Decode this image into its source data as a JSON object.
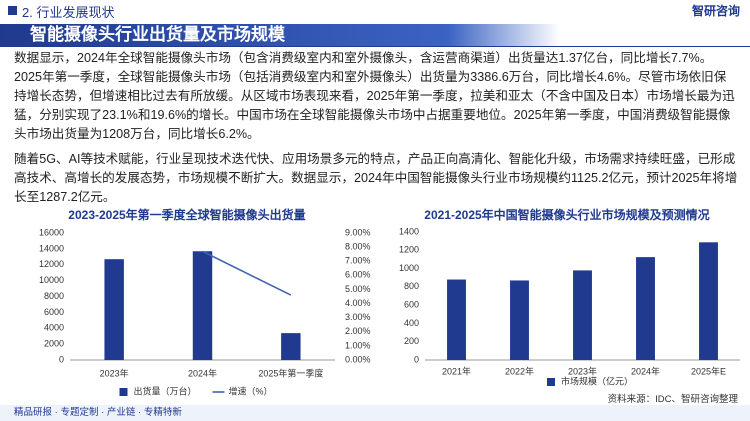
{
  "header": {
    "section": "2. 行业发展现状",
    "logo": "智研咨询"
  },
  "title": "智能摄像头行业出货量及市场规模",
  "paragraphs": [
    "数据显示，2024年全球智能摄像头市场（包含消费级室内和室外摄像头，含运营商渠道）出货量达1.37亿台，同比增长7.7%。2025年第一季度，全球智能摄像头市场（包括消费级室内和室外摄像头）出货量为3386.6万台，同比增长4.6%。尽管市场依旧保持增长态势，但增速相比过去有所放缓。从区域市场表现来看，2025年第一季度，拉美和亚太（不含中国及日本）市场增长最为迅猛，分别实现了23.1%和19.6%的增长。中国市场在全球智能摄像头市场中占据重要地位。2025年第一季度，中国消费级智能摄像头市场出货量为1208万台，同比增长6.2%。",
    "随着5G、AI等技术赋能，行业呈现技术迭代快、应用场景多元的特点，产品正向高清化、智能化升级，市场需求持续旺盛，已形成高技术、高增长的发展态势，市场规模不断扩大。数据显示，2024年中国智能摄像头行业市场规模约1125.2亿元，预计2025年将增长至1287.2亿元。"
  ],
  "chart_data": [
    {
      "type": "bar",
      "title": "2023-2025年第一季度全球智能摄像头出货量",
      "categories": [
        "2023年",
        "2024年",
        "2025年第一季度"
      ],
      "series": [
        {
          "name": "出货量（万台）",
          "type": "bar",
          "color": "#1f3a8f",
          "values": [
            12700,
            13700,
            3386.6
          ]
        },
        {
          "name": "增速（%）",
          "type": "line",
          "axis": "y2",
          "color": "#3e64b0",
          "values": [
            null,
            7.7,
            4.6
          ]
        }
      ],
      "ylim": [
        0,
        16000
      ],
      "yticks": [
        0,
        2000,
        4000,
        6000,
        8000,
        10000,
        12000,
        14000,
        16000
      ],
      "y2lim": [
        0,
        9
      ],
      "y2ticks": [
        {
          "value": 0,
          "label": "0.00%"
        },
        {
          "value": 1,
          "label": "1.00%"
        },
        {
          "value": 2,
          "label": "2.00%"
        },
        {
          "value": 3,
          "label": "3.00%"
        },
        {
          "value": 4,
          "label": "4.00%"
        },
        {
          "value": 5,
          "label": "5.00%"
        },
        {
          "value": 6,
          "label": "6.00%"
        },
        {
          "value": 7,
          "label": "7.00%"
        },
        {
          "value": 8,
          "label": "8.00%"
        },
        {
          "value": 9,
          "label": "9.00%"
        }
      ],
      "grid": false
    },
    {
      "type": "bar",
      "title": "2021-2025年中国智能摄像头行业市场规模及预测情况",
      "categories": [
        "2021年",
        "2022年",
        "2023年",
        "2024年",
        "2025年E"
      ],
      "series": [
        {
          "name": "市场规模（亿元）",
          "type": "bar",
          "color": "#1f3a8f",
          "values": [
            880,
            870,
            980,
            1125.2,
            1287.2
          ]
        }
      ],
      "ylim": [
        0,
        1400
      ],
      "yticks": [
        0,
        200,
        400,
        600,
        800,
        1000,
        1200,
        1400
      ],
      "grid": false
    }
  ],
  "source": "资料来源：IDC、智研咨询整理",
  "footer": "精品研报 · 专题定制 · 产业链 · 专精特新"
}
